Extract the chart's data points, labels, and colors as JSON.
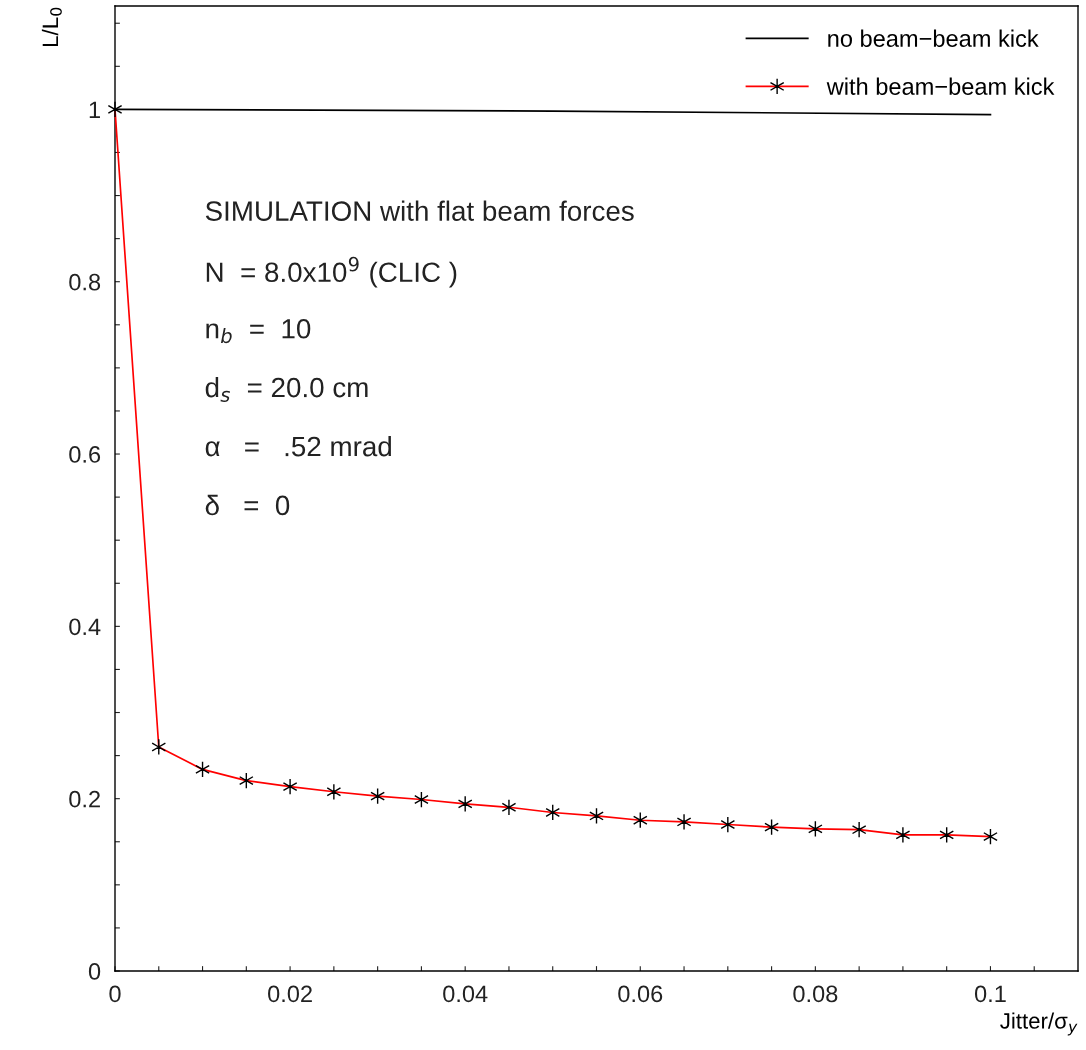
{
  "chart_data": {
    "type": "line",
    "xlabel": "Jitter/σ$_{y}$",
    "ylabel": "L/L$_{0}$",
    "xlim": [
      0,
      0.11
    ],
    "ylim": [
      0,
      1.12
    ],
    "xticks": [
      0,
      {
        "value": 0.005,
        "label": null
      },
      {
        "value": 0.01,
        "label": null
      },
      {
        "value": 0.015,
        "label": null
      },
      0.02,
      {
        "value": 0.025,
        "label": null
      },
      {
        "value": 0.03,
        "label": null
      },
      {
        "value": 0.035,
        "label": null
      },
      0.04,
      {
        "value": 0.045,
        "label": null
      },
      {
        "value": 0.05,
        "label": null
      },
      {
        "value": 0.055,
        "label": null
      },
      0.06,
      {
        "value": 0.065,
        "label": null
      },
      {
        "value": 0.07,
        "label": null
      },
      {
        "value": 0.075,
        "label": null
      },
      0.08,
      {
        "value": 0.085,
        "label": null
      },
      {
        "value": 0.09,
        "label": null
      },
      {
        "value": 0.095,
        "label": null
      },
      0.1,
      {
        "value": 0.105,
        "label": null
      }
    ],
    "yticks": [
      0,
      {
        "value": 0.05,
        "label": null
      },
      {
        "value": 0.1,
        "label": null
      },
      {
        "value": 0.15,
        "label": null
      },
      0.2,
      {
        "value": 0.25,
        "label": null
      },
      {
        "value": 0.3,
        "label": null
      },
      {
        "value": 0.35,
        "label": null
      },
      0.4,
      {
        "value": 0.45,
        "label": null
      },
      {
        "value": 0.5,
        "label": null
      },
      {
        "value": 0.55,
        "label": null
      },
      0.6,
      {
        "value": 0.65,
        "label": null
      },
      {
        "value": 0.7,
        "label": null
      },
      {
        "value": 0.75,
        "label": null
      },
      0.8,
      {
        "value": 0.85,
        "label": null
      },
      {
        "value": 0.9,
        "label": null
      },
      {
        "value": 0.95,
        "label": null
      },
      1,
      {
        "value": 1.05,
        "label": null
      },
      {
        "value": 1.1,
        "label": null
      }
    ],
    "grid": false,
    "legend": "top right",
    "series": [
      {
        "name": "no beam−beam kick",
        "color": "#000000",
        "marker": "none",
        "x": [
          0,
          0.05,
          0.1
        ],
        "values": [
          1.0,
          0.998,
          0.994
        ]
      },
      {
        "name": "with beam−beam kick",
        "color": "#ff0000",
        "marker": "cross",
        "x": [
          0,
          0.005,
          0.01,
          0.015,
          0.02,
          0.025,
          0.03,
          0.035,
          0.04,
          0.045,
          0.05,
          0.055,
          0.06,
          0.065,
          0.07,
          0.075,
          0.08,
          0.085,
          0.09,
          0.095,
          0.1
        ],
        "values": [
          1.0,
          0.26,
          0.234,
          0.221,
          0.214,
          0.208,
          0.203,
          0.199,
          0.194,
          0.19,
          0.184,
          0.18,
          0.175,
          0.173,
          0.17,
          0.167,
          0.165,
          0.164,
          0.158,
          0.158,
          0.156
        ]
      }
    ],
    "annotations": [
      "SIMULATION with flat beam forces",
      "N  = 8.0x10$^{9}$ (CLIC )",
      "n$_{b}$  =  10",
      "d$_{s}$  = 20.0 cm",
      "α   =   .52 mrad",
      "δ   =  0"
    ]
  }
}
